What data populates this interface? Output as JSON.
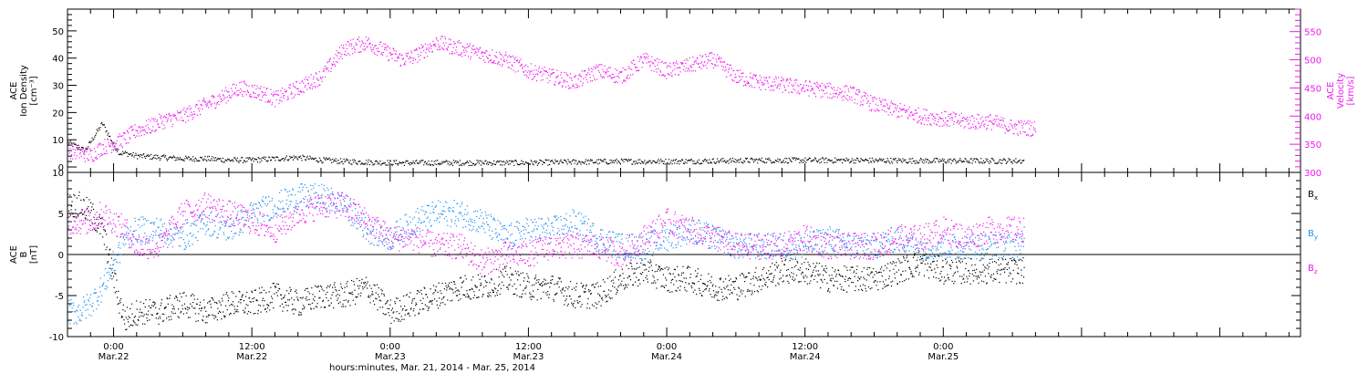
{
  "colors": {
    "black": "#000000",
    "blue": "#1f8ff0",
    "magenta": "#ee18ee"
  },
  "xaxis": {
    "title": "hours:minutes, Mar. 21, 2014 - Mar. 25, 2014",
    "range_hours": [
      -4,
      103
    ],
    "ticks": [
      {
        "hour": 0,
        "time": "0:00",
        "date": "Mar.22"
      },
      {
        "hour": 12,
        "time": "12:00",
        "date": "Mar.22"
      },
      {
        "hour": 24,
        "time": "0:00",
        "date": "Mar.23"
      },
      {
        "hour": 36,
        "time": "12:00",
        "date": "Mar.23"
      },
      {
        "hour": 48,
        "time": "0:00",
        "date": "Mar.24"
      },
      {
        "hour": 60,
        "time": "12:00",
        "date": "Mar.24"
      },
      {
        "hour": 72,
        "time": "0:00",
        "date": "Mar.25"
      }
    ]
  },
  "chart_data": [
    {
      "type": "scatter",
      "left_axis": {
        "label_lines": [
          "ACE",
          "Ion Density",
          "[cm⁻³]"
        ],
        "ylim": [
          -2,
          58
        ],
        "ticks": [
          0,
          10,
          20,
          30,
          40,
          50
        ]
      },
      "right_axis": {
        "label_lines": [
          "ACE",
          "Velocity",
          "[km/s]"
        ],
        "ylim": [
          300,
          590
        ],
        "ticks": [
          300,
          350,
          400,
          450,
          500,
          550
        ]
      },
      "series": [
        {
          "axis": "left",
          "color": "black",
          "x": [
            -4,
            -2.5,
            -1,
            -0.5,
            0,
            0.5,
            1,
            2,
            4,
            6,
            8,
            10,
            12,
            14,
            16,
            18,
            20,
            24,
            28,
            32,
            36,
            40,
            44,
            48,
            52,
            56,
            60,
            64,
            68,
            72,
            76,
            79
          ],
          "y": [
            9,
            6,
            16,
            12,
            8,
            5,
            5,
            4,
            3.5,
            3,
            3,
            2.5,
            2.5,
            3,
            3.5,
            2.5,
            2,
            1.5,
            1.5,
            1.5,
            1.5,
            1.8,
            2,
            2,
            2.2,
            2.4,
            2.4,
            2.4,
            2.3,
            2.2,
            2.2,
            2.2
          ]
        },
        {
          "axis": "right",
          "color": "magenta",
          "x": [
            -4,
            -3,
            -2,
            -1,
            0,
            1,
            2,
            3,
            4,
            6,
            8,
            10,
            11,
            12,
            13,
            14,
            16,
            18,
            20,
            22,
            24,
            25,
            26,
            28,
            30,
            32,
            34,
            36,
            38,
            40,
            42,
            44,
            46,
            48,
            50,
            52,
            54,
            56,
            58,
            60,
            62,
            64,
            65,
            66,
            68,
            70,
            72,
            74,
            76,
            78,
            80
          ],
          "y": [
            340,
            335,
            330,
            345,
            350,
            360,
            375,
            380,
            390,
            400,
            420,
            440,
            450,
            445,
            440,
            430,
            450,
            470,
            520,
            530,
            510,
            500,
            505,
            530,
            520,
            510,
            500,
            480,
            470,
            460,
            480,
            470,
            500,
            480,
            490,
            500,
            470,
            460,
            455,
            450,
            445,
            440,
            430,
            420,
            410,
            400,
            395,
            390,
            390,
            380,
            378
          ]
        }
      ]
    },
    {
      "type": "scatter",
      "left_axis": {
        "label_lines": [
          "ACE",
          "B",
          "[nT]"
        ],
        "ylim": [
          -10,
          10
        ],
        "ticks": [
          -10,
          -5,
          0,
          5,
          10
        ]
      },
      "legend": [
        "Bx",
        "By",
        "Bz"
      ],
      "series": [
        {
          "name": "Bx",
          "color": "black",
          "x": [
            -4,
            -3,
            -2,
            -1,
            -0.5,
            0,
            0.5,
            1,
            2,
            4,
            6,
            8,
            10,
            12,
            14,
            16,
            18,
            20,
            22,
            24,
            26,
            28,
            30,
            32,
            34,
            36,
            38,
            40,
            42,
            44,
            46,
            48,
            50,
            52,
            54,
            56,
            58,
            60,
            62,
            64,
            66,
            68,
            70,
            72,
            74,
            76,
            79
          ],
          "y": [
            6,
            6,
            5,
            3,
            0,
            -3,
            -6,
            -8,
            -7,
            -7,
            -6,
            -7,
            -6,
            -6,
            -5,
            -6,
            -5,
            -5,
            -4,
            -7,
            -6,
            -5,
            -4,
            -4,
            -3,
            -4,
            -4,
            -5,
            -5,
            -3,
            -2,
            -3,
            -3,
            -4,
            -4,
            -3,
            -2,
            -2,
            -3,
            -3,
            -3,
            -2,
            -1,
            -2,
            -2,
            -2,
            -2
          ]
        },
        {
          "name": "By",
          "color": "blue",
          "x": [
            -4,
            -3,
            -2,
            -1,
            0,
            1,
            2,
            4,
            6,
            8,
            10,
            12,
            14,
            16,
            18,
            20,
            22,
            24,
            26,
            28,
            30,
            32,
            34,
            36,
            38,
            40,
            42,
            44,
            46,
            48,
            50,
            52,
            54,
            56,
            58,
            60,
            62,
            64,
            66,
            68,
            70,
            72,
            74,
            76,
            79
          ],
          "y": [
            -7,
            -7,
            -6,
            -4,
            -1,
            2,
            3,
            3,
            2,
            4,
            3,
            5,
            6,
            7,
            7,
            6,
            3,
            2,
            4,
            5,
            5,
            4,
            2,
            3,
            3,
            4,
            2,
            1,
            1,
            2,
            3,
            2,
            1,
            1,
            1,
            1,
            2,
            1,
            1,
            2,
            1,
            1,
            1,
            1,
            1
          ]
        },
        {
          "name": "Bz",
          "color": "magenta",
          "x": [
            -4,
            -3,
            -2,
            -1,
            0,
            1,
            2,
            4,
            6,
            8,
            10,
            12,
            14,
            16,
            18,
            20,
            22,
            24,
            26,
            28,
            30,
            32,
            34,
            36,
            38,
            40,
            42,
            44,
            46,
            48,
            50,
            52,
            54,
            56,
            58,
            60,
            62,
            64,
            66,
            68,
            70,
            72,
            74,
            76,
            79
          ],
          "y": [
            4,
            4,
            4,
            5,
            4,
            3,
            1,
            1,
            5,
            6,
            5,
            4,
            3,
            5,
            6,
            6,
            4,
            2,
            2,
            1,
            1,
            -1,
            0,
            0,
            1,
            1,
            1,
            0,
            2,
            4,
            3,
            2,
            1,
            1,
            1,
            2,
            1,
            1,
            1,
            2,
            2,
            3,
            2,
            3,
            3
          ]
        }
      ]
    }
  ]
}
